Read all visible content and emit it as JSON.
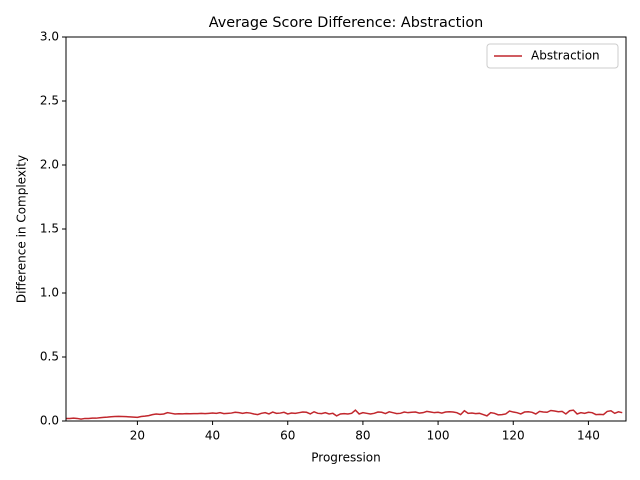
{
  "chart_data": {
    "type": "line",
    "title": "Average Score Difference: Abstraction",
    "xlabel": "Progression",
    "ylabel": "Difference in Complexity",
    "x": [
      1,
      2,
      3,
      4,
      5,
      6,
      7,
      8,
      9,
      10,
      11,
      12,
      13,
      14,
      15,
      16,
      17,
      18,
      19,
      20,
      21,
      22,
      23,
      24,
      25,
      26,
      27,
      28,
      29,
      30,
      31,
      32,
      33,
      34,
      35,
      36,
      37,
      38,
      39,
      40,
      41,
      42,
      43,
      44,
      45,
      46,
      47,
      48,
      49,
      50,
      51,
      52,
      53,
      54,
      55,
      56,
      57,
      58,
      59,
      60,
      61,
      62,
      63,
      64,
      65,
      66,
      67,
      68,
      69,
      70,
      71,
      72,
      73,
      74,
      75,
      76,
      77,
      78,
      79,
      80,
      81,
      82,
      83,
      84,
      85,
      86,
      87,
      88,
      89,
      90,
      91,
      92,
      93,
      94,
      95,
      96,
      97,
      98,
      99,
      100,
      101,
      102,
      103,
      104,
      105,
      106,
      107,
      108,
      109,
      110,
      111,
      112,
      113,
      114,
      115,
      116,
      117,
      118,
      119,
      120,
      121,
      122,
      123,
      124,
      125,
      126,
      127,
      128,
      129,
      130,
      131,
      132,
      133,
      134,
      135,
      136,
      137,
      138,
      139,
      140,
      141,
      142,
      143,
      144,
      145,
      146,
      147,
      148,
      149
    ],
    "series": [
      {
        "name": "Abstraction",
        "color": "#c1272d",
        "values": [
          0.02,
          0.02,
          0.022,
          0.02,
          0.015,
          0.02,
          0.02,
          0.022,
          0.022,
          0.025,
          0.028,
          0.03,
          0.033,
          0.035,
          0.036,
          0.035,
          0.034,
          0.032,
          0.03,
          0.028,
          0.035,
          0.038,
          0.042,
          0.05,
          0.055,
          0.052,
          0.055,
          0.065,
          0.06,
          0.055,
          0.057,
          0.056,
          0.058,
          0.057,
          0.058,
          0.058,
          0.06,
          0.058,
          0.06,
          0.062,
          0.06,
          0.065,
          0.058,
          0.06,
          0.062,
          0.068,
          0.065,
          0.06,
          0.065,
          0.062,
          0.055,
          0.05,
          0.06,
          0.065,
          0.055,
          0.07,
          0.06,
          0.062,
          0.068,
          0.055,
          0.062,
          0.06,
          0.065,
          0.07,
          0.068,
          0.055,
          0.072,
          0.06,
          0.058,
          0.065,
          0.055,
          0.06,
          0.04,
          0.055,
          0.058,
          0.055,
          0.06,
          0.085,
          0.055,
          0.065,
          0.06,
          0.055,
          0.06,
          0.07,
          0.068,
          0.058,
          0.072,
          0.065,
          0.058,
          0.06,
          0.07,
          0.065,
          0.068,
          0.07,
          0.062,
          0.065,
          0.075,
          0.07,
          0.065,
          0.068,
          0.062,
          0.07,
          0.072,
          0.07,
          0.065,
          0.05,
          0.08,
          0.06,
          0.062,
          0.058,
          0.06,
          0.05,
          0.04,
          0.065,
          0.06,
          0.048,
          0.05,
          0.055,
          0.078,
          0.07,
          0.065,
          0.055,
          0.07,
          0.072,
          0.068,
          0.055,
          0.075,
          0.07,
          0.068,
          0.082,
          0.078,
          0.072,
          0.075,
          0.055,
          0.08,
          0.085,
          0.055,
          0.065,
          0.06,
          0.068,
          0.065,
          0.05,
          0.052,
          0.05,
          0.075,
          0.08,
          0.06,
          0.072,
          0.065
        ]
      }
    ],
    "xlim": [
      1,
      150
    ],
    "xticks": [
      20,
      40,
      60,
      80,
      100,
      120,
      140
    ],
    "ylim": [
      0,
      3
    ],
    "yticks": [
      {
        "value": 0,
        "label": "0.0"
      },
      {
        "value": 0.5,
        "label": "0.5"
      },
      {
        "value": 1,
        "label": "1.0"
      },
      {
        "value": 1.5,
        "label": "1.5"
      },
      {
        "value": 2,
        "label": "2.0"
      },
      {
        "value": 2.5,
        "label": "2.5"
      },
      {
        "value": 3,
        "label": "3.0"
      }
    ],
    "legend": "upper right"
  }
}
